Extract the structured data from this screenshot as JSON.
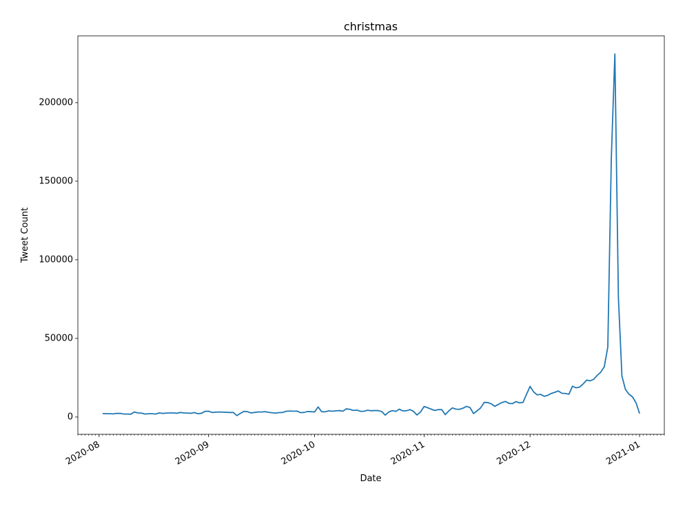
{
  "chart_data": {
    "type": "line",
    "title": "christmas",
    "x_label": "Date",
    "y_label": "Tweet Count",
    "color": "#1f77b4",
    "x": [
      "2020-08-02",
      "2020-08-03",
      "2020-08-04",
      "2020-08-05",
      "2020-08-06",
      "2020-08-07",
      "2020-08-08",
      "2020-08-09",
      "2020-08-10",
      "2020-08-11",
      "2020-08-12",
      "2020-08-13",
      "2020-08-14",
      "2020-08-15",
      "2020-08-16",
      "2020-08-17",
      "2020-08-18",
      "2020-08-19",
      "2020-08-20",
      "2020-08-21",
      "2020-08-22",
      "2020-08-23",
      "2020-08-24",
      "2020-08-25",
      "2020-08-26",
      "2020-08-27",
      "2020-08-28",
      "2020-08-29",
      "2020-08-30",
      "2020-08-31",
      "2020-09-01",
      "2020-09-02",
      "2020-09-03",
      "2020-09-04",
      "2020-09-05",
      "2020-09-06",
      "2020-09-07",
      "2020-09-08",
      "2020-09-09",
      "2020-09-10",
      "2020-09-11",
      "2020-09-12",
      "2020-09-13",
      "2020-09-14",
      "2020-09-15",
      "2020-09-16",
      "2020-09-17",
      "2020-09-18",
      "2020-09-19",
      "2020-09-20",
      "2020-09-21",
      "2020-09-22",
      "2020-09-23",
      "2020-09-24",
      "2020-09-25",
      "2020-09-26",
      "2020-09-27",
      "2020-09-28",
      "2020-09-29",
      "2020-09-30",
      "2020-10-01",
      "2020-10-02",
      "2020-10-03",
      "2020-10-04",
      "2020-10-05",
      "2020-10-06",
      "2020-10-07",
      "2020-10-08",
      "2020-10-09",
      "2020-10-10",
      "2020-10-11",
      "2020-10-12",
      "2020-10-13",
      "2020-10-14",
      "2020-10-15",
      "2020-10-16",
      "2020-10-17",
      "2020-10-18",
      "2020-10-19",
      "2020-10-20",
      "2020-10-21",
      "2020-10-22",
      "2020-10-23",
      "2020-10-24",
      "2020-10-25",
      "2020-10-26",
      "2020-10-27",
      "2020-10-28",
      "2020-10-29",
      "2020-10-30",
      "2020-10-31",
      "2020-11-01",
      "2020-11-02",
      "2020-11-03",
      "2020-11-04",
      "2020-11-05",
      "2020-11-06",
      "2020-11-07",
      "2020-11-08",
      "2020-11-09",
      "2020-11-10",
      "2020-11-11",
      "2020-11-12",
      "2020-11-13",
      "2020-11-14",
      "2020-11-15",
      "2020-11-16",
      "2020-11-17",
      "2020-11-18",
      "2020-11-19",
      "2020-11-20",
      "2020-11-21",
      "2020-11-22",
      "2020-11-23",
      "2020-11-24",
      "2020-11-25",
      "2020-11-26",
      "2020-11-27",
      "2020-11-28",
      "2020-11-29",
      "2020-11-30",
      "2020-12-01",
      "2020-12-02",
      "2020-12-03",
      "2020-12-04",
      "2020-12-05",
      "2020-12-06",
      "2020-12-07",
      "2020-12-08",
      "2020-12-09",
      "2020-12-10",
      "2020-12-11",
      "2020-12-12",
      "2020-12-13",
      "2020-12-14",
      "2020-12-15",
      "2020-12-16",
      "2020-12-17",
      "2020-12-18",
      "2020-12-19",
      "2020-12-20",
      "2020-12-21",
      "2020-12-22",
      "2020-12-23",
      "2020-12-24",
      "2020-12-25",
      "2020-12-26",
      "2020-12-27",
      "2020-12-28",
      "2020-12-29",
      "2020-12-30",
      "2020-12-31",
      "2021-01-01"
    ],
    "values": [
      2200,
      2100,
      2100,
      2000,
      2300,
      2300,
      1900,
      1900,
      1800,
      3200,
      2600,
      2500,
      1900,
      2100,
      2100,
      1900,
      2600,
      2300,
      2500,
      2600,
      2600,
      2400,
      2900,
      2600,
      2500,
      2400,
      2800,
      2100,
      2400,
      3600,
      3700,
      2900,
      3100,
      3200,
      3100,
      3000,
      2900,
      2900,
      900,
      2300,
      3600,
      3400,
      2600,
      2900,
      3200,
      3200,
      3400,
      3000,
      2700,
      2500,
      2800,
      2900,
      3700,
      3800,
      3700,
      3800,
      2800,
      2900,
      3500,
      3400,
      3200,
      6400,
      3400,
      3300,
      3900,
      3700,
      3900,
      4100,
      3700,
      5200,
      4900,
      4200,
      4400,
      3600,
      3700,
      4300,
      4000,
      4100,
      4100,
      3500,
      1200,
      3200,
      4100,
      3600,
      5000,
      3900,
      4000,
      4700,
      3600,
      1300,
      3200,
      6700,
      5900,
      5000,
      4200,
      4700,
      4700,
      1500,
      3900,
      5800,
      5000,
      4900,
      5600,
      6800,
      6000,
      2200,
      3900,
      5800,
      9300,
      9200,
      8400,
      6800,
      8000,
      9200,
      9900,
      8700,
      8500,
      9800,
      9000,
      9300,
      14500,
      19500,
      16000,
      14100,
      14400,
      13200,
      13800,
      15000,
      15700,
      16600,
      15100,
      15000,
      14500,
      19600,
      18600,
      19000,
      21000,
      23500,
      23000,
      24000,
      26500,
      28500,
      32000,
      44500,
      165000,
      231000,
      76000,
      26000,
      17500,
      14500,
      12800,
      9000,
      2200
    ],
    "xlim": [
      "2020-07-26",
      "2021-01-08"
    ],
    "xticks": [
      {
        "value": "2020-08-01",
        "label": "2020-08"
      },
      {
        "value": "2020-09-01",
        "label": "2020-09"
      },
      {
        "value": "2020-10-01",
        "label": "2020-10"
      },
      {
        "value": "2020-11-01",
        "label": "2020-11"
      },
      {
        "value": "2020-12-01",
        "label": "2020-12"
      },
      {
        "value": "2021-01-01",
        "label": "2021-01"
      }
    ],
    "ylim": [
      -11000,
      242500
    ],
    "yticks": [
      0,
      50000,
      100000,
      150000,
      200000
    ]
  }
}
